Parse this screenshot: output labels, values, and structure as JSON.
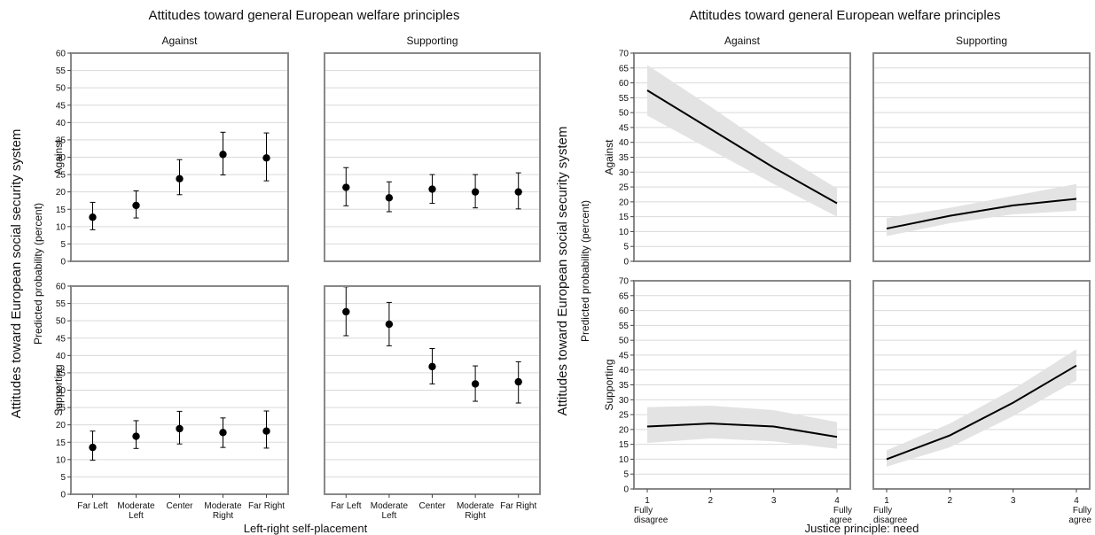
{
  "colors": {
    "panel_border": "#888888",
    "grid": "#d9d9d9",
    "marker": "#000000",
    "ci_band": "#e3e3e3",
    "line": "#000000"
  },
  "chart_data": [
    {
      "type": "scatter",
      "title": "Attitudes toward general European welfare principles",
      "col_labels": [
        "Against",
        "Supporting"
      ],
      "row_labels": [
        "Against",
        "Supporting"
      ],
      "outer_ylabel": "Attitudes toward European social security system",
      "ylabel": "Predicted probability (percent)",
      "xlabel": "Left-right self-placement",
      "categories": [
        "Far Left",
        "Moderate Left",
        "Center",
        "Moderate Right",
        "Far Right"
      ],
      "category_lines": [
        [
          "Far Left"
        ],
        [
          "Moderate",
          "Left"
        ],
        [
          "Center"
        ],
        [
          "Moderate",
          "Right"
        ],
        [
          "Far Right"
        ]
      ],
      "ylim": [
        0,
        60
      ],
      "yticks": [
        0,
        5,
        10,
        15,
        20,
        25,
        30,
        35,
        40,
        45,
        50,
        55,
        60
      ],
      "grid": true,
      "panels": [
        {
          "row": "Against",
          "col": "Against",
          "values": [
            12.7,
            16.1,
            23.8,
            30.8,
            29.8
          ],
          "lower": [
            9.1,
            12.5,
            19.2,
            24.9,
            23.2
          ],
          "upper": [
            17.0,
            20.3,
            29.3,
            37.2,
            37.0
          ]
        },
        {
          "row": "Against",
          "col": "Supporting",
          "values": [
            21.3,
            18.3,
            20.8,
            20.0,
            20.0
          ],
          "lower": [
            16.0,
            14.3,
            16.7,
            15.4,
            15.1
          ],
          "upper": [
            27.0,
            22.9,
            25.0,
            25.0,
            25.5
          ]
        },
        {
          "row": "Supporting",
          "col": "Against",
          "values": [
            13.5,
            16.7,
            18.9,
            17.8,
            18.2
          ],
          "lower": [
            9.8,
            13.2,
            14.5,
            13.5,
            13.3
          ],
          "upper": [
            18.2,
            21.2,
            23.9,
            22.0,
            24.0
          ]
        },
        {
          "row": "Supporting",
          "col": "Supporting",
          "values": [
            52.6,
            49.0,
            36.8,
            31.8,
            32.4
          ],
          "lower": [
            45.7,
            42.8,
            31.8,
            26.8,
            26.3
          ],
          "upper": [
            59.8,
            55.3,
            42.0,
            37.0,
            38.2
          ]
        }
      ]
    },
    {
      "type": "line",
      "title": "Attitudes toward general European welfare principles",
      "col_labels": [
        "Against",
        "Supporting"
      ],
      "row_labels": [
        "Against",
        "Supporting"
      ],
      "outer_ylabel": "Attitudes toward European social security system",
      "ylabel": "Predicted probability (percent)",
      "xlabel": "Justice principle: need",
      "x": [
        1,
        2,
        3,
        4
      ],
      "xticks": [
        "1",
        "2",
        "3",
        "4"
      ],
      "xtick_notes": [
        [
          "Fully",
          "disagree"
        ],
        [],
        [],
        [
          "Fully",
          "agree"
        ]
      ],
      "ylim": [
        0,
        70
      ],
      "yticks": [
        0,
        5,
        10,
        15,
        20,
        25,
        30,
        35,
        40,
        45,
        50,
        55,
        60,
        65,
        70
      ],
      "grid": true,
      "panels": [
        {
          "row": "Against",
          "col": "Against",
          "values": [
            57.5,
            44.5,
            31.5,
            19.5
          ],
          "lower": [
            49.0,
            37.5,
            26.0,
            15.0
          ],
          "upper": [
            66.0,
            52.0,
            37.5,
            24.5
          ]
        },
        {
          "row": "Against",
          "col": "Supporting",
          "values": [
            11.0,
            15.3,
            18.8,
            21.0
          ],
          "lower": [
            8.5,
            12.8,
            15.8,
            17.0
          ],
          "upper": [
            14.5,
            18.0,
            22.0,
            26.0
          ]
        },
        {
          "row": "Supporting",
          "col": "Against",
          "values": [
            21.0,
            22.0,
            21.0,
            17.5
          ],
          "lower": [
            15.5,
            17.0,
            16.0,
            13.5
          ],
          "upper": [
            27.5,
            28.0,
            26.5,
            22.5
          ]
        },
        {
          "row": "Supporting",
          "col": "Supporting",
          "values": [
            10.0,
            18.0,
            29.0,
            41.5
          ],
          "lower": [
            7.5,
            14.0,
            24.5,
            36.5
          ],
          "upper": [
            13.0,
            22.0,
            33.5,
            47.0
          ]
        }
      ]
    }
  ]
}
